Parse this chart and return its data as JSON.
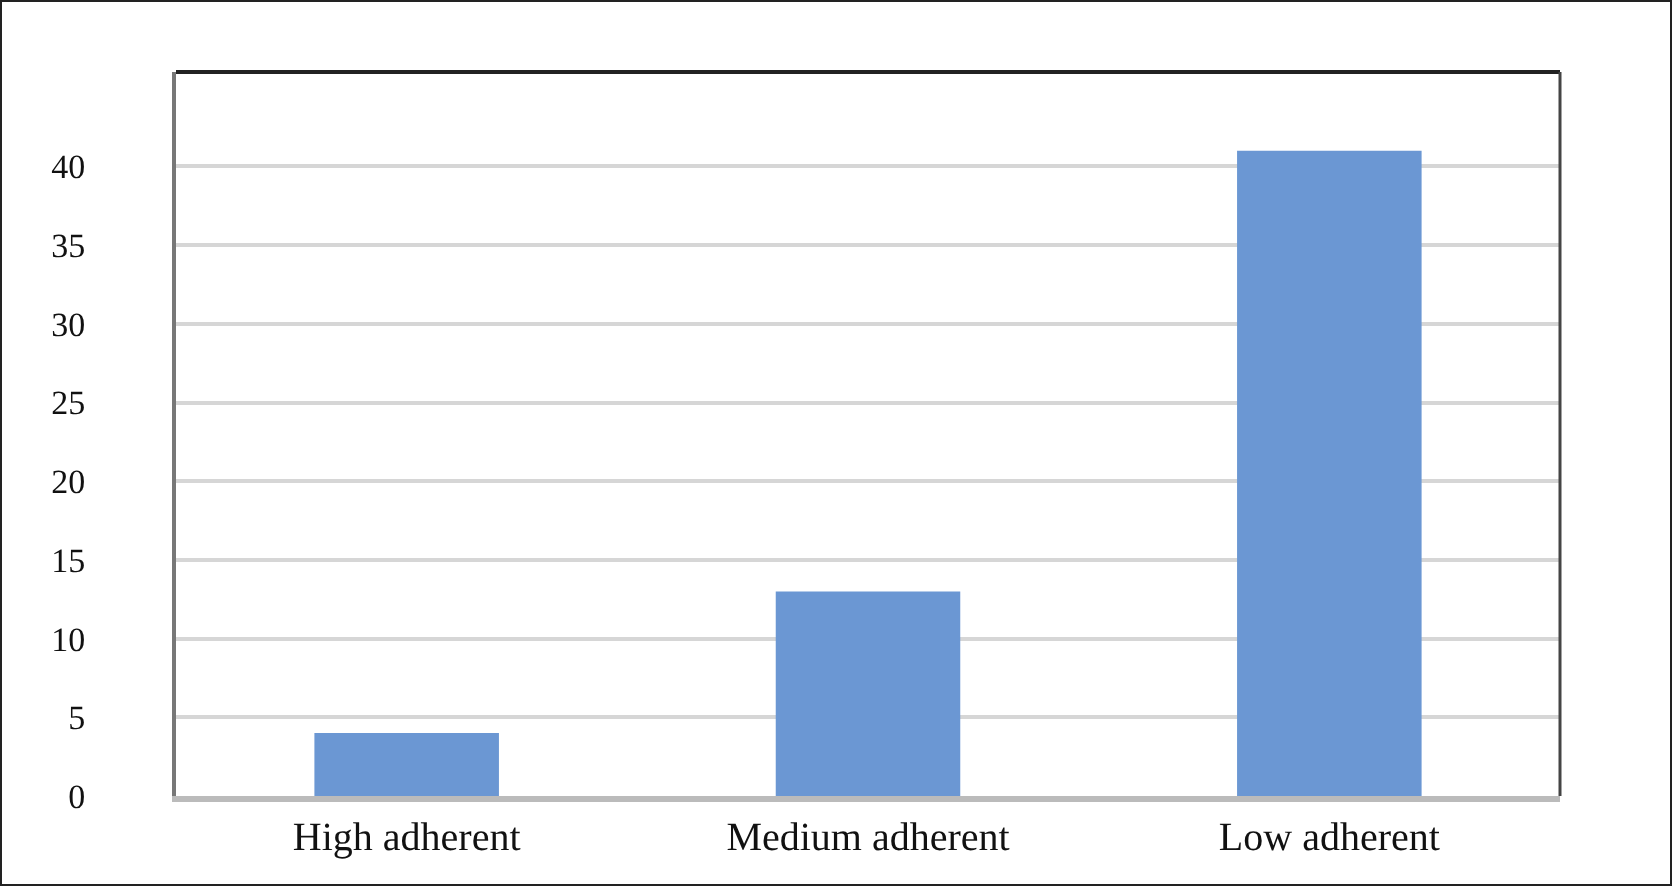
{
  "chart_data": {
    "type": "bar",
    "categories": [
      "High adherent",
      "Medium adherent",
      "Low adherent"
    ],
    "values": [
      4,
      13,
      41
    ],
    "color": "#6b97d3",
    "ylim": [
      0,
      46
    ],
    "yticks": [
      0,
      5,
      10,
      15,
      20,
      25,
      30,
      35,
      40
    ],
    "grid": "y"
  }
}
